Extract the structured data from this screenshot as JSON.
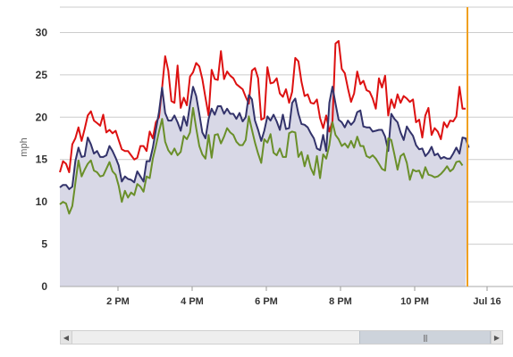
{
  "chart_data": {
    "type": "area",
    "ylabel": "mph",
    "ylim": [
      0,
      33
    ],
    "y_ticks": [
      "0",
      "5",
      "10",
      "15",
      "20",
      "25",
      "30"
    ],
    "x_ticks": [
      "2 PM",
      "4 PM",
      "6 PM",
      "8 PM",
      "10 PM",
      "Jul 16"
    ],
    "grid": true,
    "series": [
      {
        "values": [
          13.5,
          14.8,
          14.5,
          13.5,
          16.8,
          17.5,
          18.8,
          17.2,
          18.6,
          20.2,
          20.7,
          19.6,
          19.3,
          19,
          20.3,
          18.2,
          18.5,
          18.1,
          18.4,
          17.3,
          16.2,
          16,
          16,
          15.5,
          15,
          15.2,
          16.6,
          16.6,
          16,
          18.3,
          17.5,
          19.4,
          20,
          23.5,
          27.2,
          25.5,
          21.9,
          21.7,
          26.1,
          21.1,
          22.3,
          21.4,
          24.8,
          25.3,
          26.4,
          26,
          24.5,
          22.3,
          20.2,
          25.6,
          24.5,
          24.4,
          27.8,
          24.5,
          25.4,
          24.9,
          24.6,
          23.9,
          23.6,
          23.3,
          22.4,
          21.6,
          25.5,
          25.8,
          24.6,
          19.7,
          19.9,
          25.9,
          24,
          24.1,
          24.6,
          22.8,
          22.4,
          23.3,
          21.7,
          23,
          27,
          26.6,
          24.2,
          22.5,
          22.7,
          21.7,
          21.6,
          22.1,
          19.9,
          18.7,
          20.2,
          18.3,
          19.5,
          28.7,
          29,
          25.7,
          25.2,
          23.4,
          21.8,
          22.8,
          25.4,
          23.9,
          24.3,
          23.2,
          23,
          22.2,
          21,
          24.6,
          23.5,
          24.9,
          20.2,
          22.1,
          21.1,
          22.7,
          21.7,
          22.5,
          22.2,
          21.8,
          22.1,
          19.4,
          19.7,
          17.6,
          20.2,
          21.1,
          17.9,
          18.7,
          18.3,
          17.4,
          19.4,
          18.8,
          19.6,
          19.5,
          20.1,
          23.6,
          21,
          21
        ]
      },
      {
        "values": [
          11.7,
          12,
          12,
          11.5,
          11.8,
          14.8,
          16.4,
          15.3,
          15.4,
          17.6,
          16.8,
          15.7,
          16,
          15.3,
          15.3,
          15.5,
          16.6,
          16,
          15.2,
          14.3,
          12.4,
          13,
          12.7,
          12.6,
          12.3,
          13.6,
          13,
          12.4,
          14.8,
          14.8,
          16.4,
          18.5,
          20.6,
          23.5,
          20.5,
          19.6,
          19.6,
          20.2,
          19.4,
          18.4,
          20.1,
          19,
          21.5,
          23.6,
          22.5,
          20.4,
          18.2,
          17.5,
          19.8,
          21,
          20.3,
          21.3,
          21.3,
          20.4,
          21,
          20.4,
          20.4,
          19.8,
          20.5,
          19.5,
          20,
          22.6,
          22.1,
          19.6,
          18.5,
          17.2,
          18.4,
          20.1,
          19.6,
          20.3,
          19.5,
          18.5,
          20.3,
          18.6,
          18.7,
          21.7,
          22.2,
          20.4,
          19.2,
          19.1,
          18.8,
          18.1,
          17.5,
          16.3,
          16.1,
          17.9,
          16,
          21.7,
          23.6,
          21.6,
          19.7,
          19.4,
          18.8,
          19.6,
          19.1,
          19.5,
          20.6,
          20.8,
          18.9,
          18.8,
          18.8,
          18.3,
          18.4,
          18.5,
          18.5,
          17.7,
          16,
          20.4,
          19.8,
          19.4,
          18.2,
          17.3,
          18.9,
          18.3,
          17.8,
          16.7,
          16.2,
          16.3,
          15.4,
          15.8,
          16.5,
          15.5,
          15.7,
          15.1,
          15.3,
          15.1,
          15.1,
          15.7,
          16.4,
          15.7,
          17.6,
          17.5,
          16.4
        ]
      },
      {
        "values": [
          9.7,
          10,
          9.8,
          8.6,
          9.5,
          12.2,
          14.9,
          13,
          13.8,
          14.5,
          14.9,
          13.7,
          13.5,
          13,
          13.1,
          13.9,
          14.7,
          13.6,
          13.2,
          11.9,
          10,
          11.3,
          10.5,
          11.1,
          10.8,
          12.1,
          11.8,
          11.2,
          13,
          12.8,
          15.1,
          16.6,
          18.3,
          19.8,
          17.1,
          16.1,
          15.6,
          16.3,
          15.5,
          15.9,
          17.8,
          17.4,
          18.2,
          21.1,
          18.7,
          16.6,
          15.6,
          15.1,
          17.9,
          15.2,
          17.9,
          18,
          16.9,
          17.7,
          18.7,
          18.2,
          17.9,
          17.1,
          16.7,
          16.7,
          17.3,
          20.1,
          18.5,
          17,
          15.7,
          14.6,
          17.4,
          17,
          18,
          15.8,
          15.5,
          16.3,
          15.3,
          15.3,
          18.1,
          18.3,
          18.2,
          15.3,
          15.9,
          14.2,
          15.5,
          14,
          13.2,
          15.4,
          12.8,
          15.6,
          15.1,
          16.7,
          19.4,
          17.9,
          17.4,
          16.6,
          16.9,
          16.4,
          17.2,
          16.4,
          17.7,
          16.6,
          16.6,
          15.4,
          15.2,
          15.5,
          15.1,
          14.5,
          13.9,
          13.7,
          17.5,
          17.3,
          15.6,
          13.8,
          15.4,
          15.7,
          14.6,
          12.6,
          13.8,
          13.6,
          13.7,
          12.8,
          14.1,
          13.2,
          13.1,
          12.9,
          13,
          13.3,
          13.7,
          14.2,
          13.6,
          13.9,
          14.7,
          14.8,
          14.3
        ]
      }
    ]
  },
  "styles": {
    "line_colors": [
      "#dd1111",
      "#33336b",
      "#6a8f2a"
    ],
    "area_fill": "#d8d8e6",
    "marker_color": "#f0a020",
    "grid_color": "#cccccc"
  },
  "scrollbar": {
    "grip": "|||"
  }
}
